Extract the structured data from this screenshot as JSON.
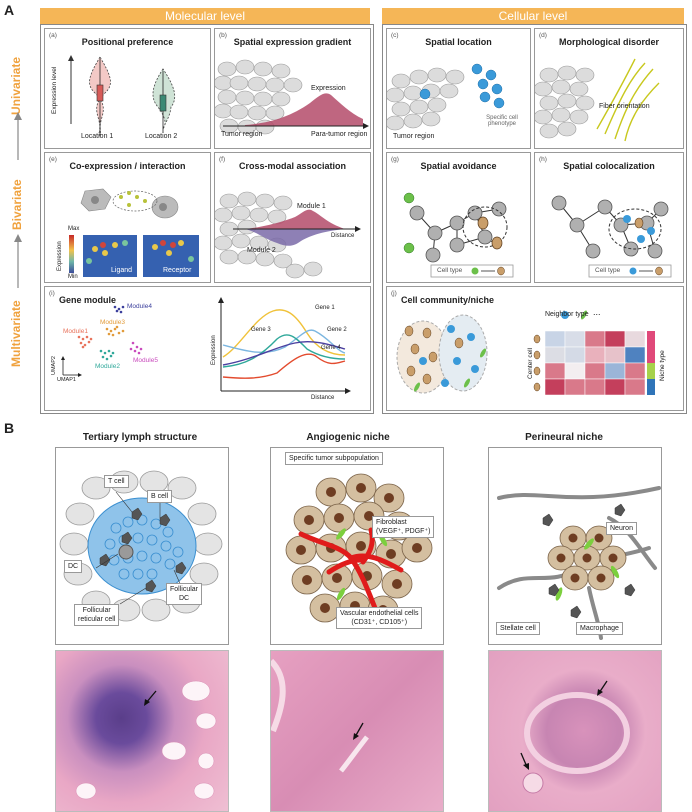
{
  "labels": {
    "A": "A",
    "B": "B"
  },
  "column_headers": {
    "molecular": "Molecular level",
    "cellular": "Cellular level"
  },
  "row_labels": {
    "univariate": "Univariate",
    "bivariate": "Bivariate",
    "multivariate": "Multivariate"
  },
  "panels": {
    "a": {
      "sub": "(a)",
      "title": "Positional preference",
      "ylabel": "Expression level",
      "loc1": "Location 1",
      "loc2": "Location 2"
    },
    "b": {
      "sub": "(b)",
      "title": "Spatial expression gradient",
      "expression": "Expression",
      "tumor": "Tumor region",
      "para": "Para-tumor region"
    },
    "c": {
      "sub": "(c)",
      "title": "Spatial location",
      "tumor": "Tumor region",
      "phenotype": "Specific cell phenotype"
    },
    "d": {
      "sub": "(d)",
      "title": "Morphological disorder",
      "fiber": "Fiber orientation"
    },
    "e": {
      "sub": "(e)",
      "title": "Co-expression / interaction",
      "max": "Max",
      "min": "Min",
      "expression": "Expression",
      "ligand": "Ligand",
      "receptor": "Receptor"
    },
    "f": {
      "sub": "(f)",
      "title": "Cross-modal association",
      "module1": "Module 1",
      "module2": "Module 2",
      "distance": "Distance"
    },
    "g": {
      "sub": "(g)",
      "title": "Spatial avoidance",
      "celltype": "Cell type"
    },
    "h": {
      "sub": "(h)",
      "title": "Spatial colocalization",
      "celltype": "Cell type"
    },
    "i": {
      "sub": "(i)",
      "title": "Gene module",
      "module1": "Module1",
      "module2": "Module2",
      "module3": "Module3",
      "module4": "Module4",
      "module5": "Module5",
      "umap1": "UMAP1",
      "umap2": "UMAP2",
      "expression": "Expression",
      "distance": "Distance",
      "gene1": "Gene 1",
      "gene2": "Gene 2",
      "gene3": "Gene 3",
      "gene4": "Gene 4"
    },
    "j": {
      "sub": "(j)",
      "title": "Cell community/niche",
      "neighbor": "Neighbor type",
      "center": "Center cell",
      "niche": "Niche type",
      "dots": "..."
    }
  },
  "b_panels": {
    "tls": {
      "title": "Tertiary lymph structure",
      "tcell": "T cell",
      "bcell": "B cell",
      "dc": "DC",
      "fdc": "Follicular\nDC",
      "frc": "Follicular\nreticular cell"
    },
    "angio": {
      "title": "Angiogenic niche",
      "tumor": "Specific tumor subpopulation",
      "fib": "Fibroblast\n(VEGF⁺, PDGF⁺)",
      "endo": "Vascular endothelial cells\n(CD31⁺, CD105⁺)"
    },
    "peri": {
      "title": "Perineural niche",
      "neuron": "Neuron",
      "stellate": "Stellate cell",
      "macro": "Macrophage"
    }
  },
  "colors": {
    "accent": "#f5b657",
    "label": "#f0a23e",
    "he_bg": "#e9a7c5",
    "he_nuclei": "#6a4b9c"
  }
}
